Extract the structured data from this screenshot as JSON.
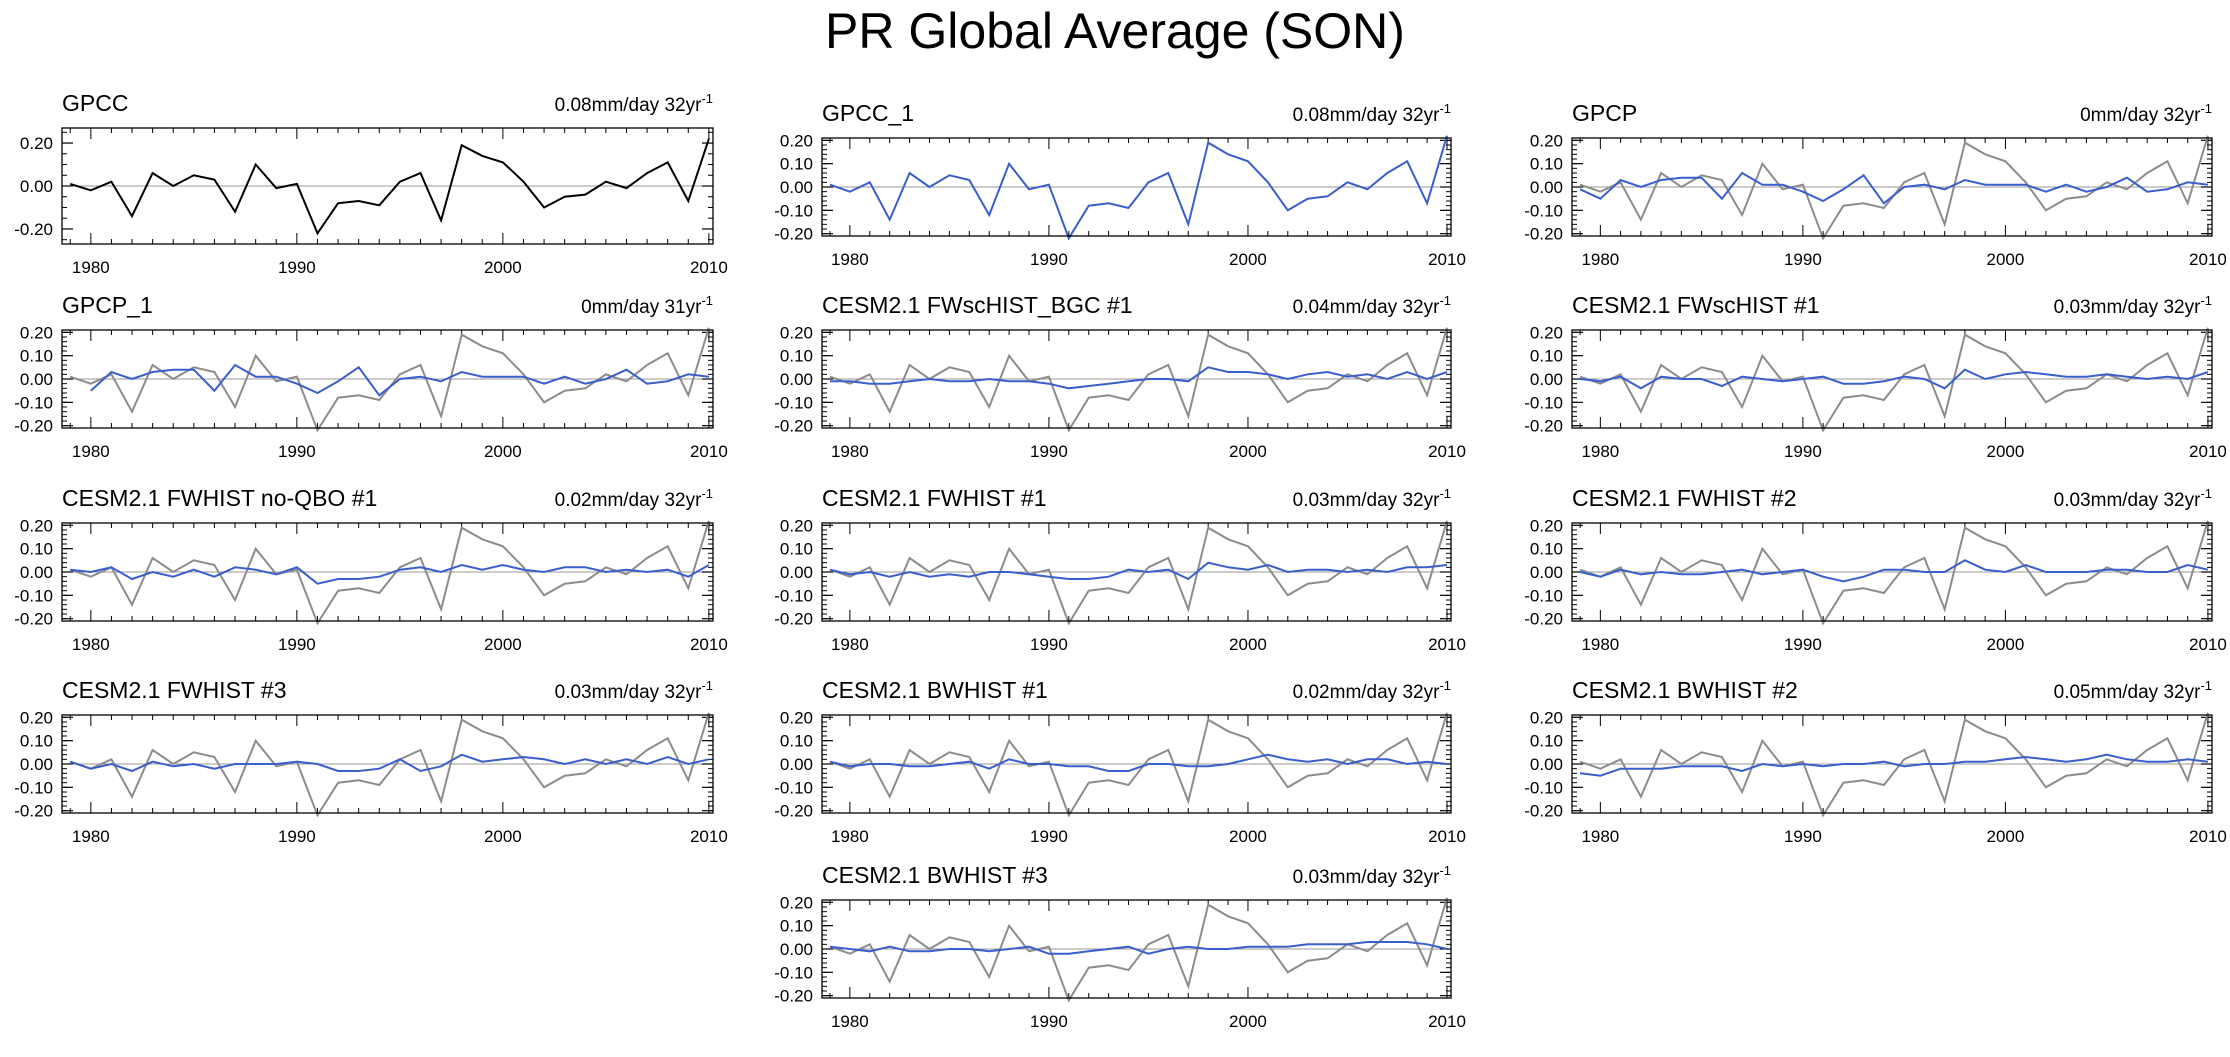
{
  "title": "PR Global Average (SON)",
  "colors": {
    "observed": "#8c8c8c",
    "gpcc": "#000000",
    "model": "#3a5fcd",
    "zero_line": "#999999"
  },
  "chart_data": [
    {
      "type": "line",
      "title": "GPCC",
      "trend": "0.08mm/day 32yr",
      "trend_superscript": "-1",
      "x_start": 1979,
      "x_end": 2010,
      "ylim": [
        -0.27,
        0.27
      ],
      "yticks": [
        -0.2,
        0,
        0.2
      ],
      "ytick_labels": [
        "-0.20",
        "0.00",
        "0.20"
      ],
      "xticks": [
        1980,
        1990,
        2000,
        2010
      ],
      "show_reference": false,
      "series": [
        {
          "color": "#000000",
          "values": [
            0.01,
            -0.02,
            0.02,
            -0.14,
            0.06,
            0.0,
            0.05,
            0.03,
            -0.12,
            0.1,
            -0.01,
            0.01,
            -0.22,
            -0.08,
            -0.07,
            -0.09,
            0.02,
            0.06,
            -0.16,
            0.19,
            0.14,
            0.11,
            0.02,
            -0.1,
            -0.05,
            -0.04,
            0.02,
            -0.01,
            0.06,
            0.11,
            -0.07,
            0.22
          ]
        }
      ]
    },
    {
      "type": "line",
      "title": "GPCC_1",
      "trend": "0.08mm/day 32yr",
      "trend_superscript": "-1",
      "x_start": 1979,
      "x_end": 2010,
      "ylim": [
        -0.21,
        0.21
      ],
      "yticks": [
        -0.2,
        -0.1,
        0,
        0.1,
        0.2
      ],
      "ytick_labels": [
        "-0.20",
        "-0.10",
        "0.00",
        "0.10",
        "0.20"
      ],
      "xticks": [
        1980,
        1990,
        2000,
        2010
      ],
      "show_reference": false,
      "series": [
        {
          "color": "#3a5fcd",
          "values": [
            0.01,
            -0.02,
            0.02,
            -0.14,
            0.06,
            0.0,
            0.05,
            0.03,
            -0.12,
            0.1,
            -0.01,
            0.01,
            -0.22,
            -0.08,
            -0.07,
            -0.09,
            0.02,
            0.06,
            -0.16,
            0.19,
            0.14,
            0.11,
            0.02,
            -0.1,
            -0.05,
            -0.04,
            0.02,
            -0.01,
            0.06,
            0.11,
            -0.07,
            0.22
          ]
        }
      ]
    },
    {
      "type": "line",
      "title": "GPCP",
      "trend": "0mm/day 32yr",
      "trend_superscript": "-1",
      "x_start": 1979,
      "x_end": 2010,
      "ylim": [
        -0.21,
        0.21
      ],
      "yticks": [
        -0.2,
        -0.1,
        0,
        0.1,
        0.2
      ],
      "ytick_labels": [
        "-0.20",
        "-0.10",
        "0.00",
        "0.10",
        "0.20"
      ],
      "xticks": [
        1980,
        1990,
        2000,
        2010
      ],
      "show_reference": true,
      "series": [
        {
          "color": "#3a5fcd",
          "values": [
            -0.01,
            -0.05,
            0.03,
            0.0,
            0.03,
            0.04,
            0.04,
            -0.05,
            0.06,
            0.01,
            0.01,
            -0.02,
            -0.06,
            -0.01,
            0.05,
            -0.07,
            0.0,
            0.01,
            -0.01,
            0.03,
            0.01,
            0.01,
            0.01,
            -0.02,
            0.01,
            -0.02,
            0.0,
            0.04,
            -0.02,
            -0.01,
            0.02,
            0.01
          ]
        }
      ]
    },
    {
      "type": "line",
      "title": "GPCP_1",
      "trend": "0mm/day 31yr",
      "trend_superscript": "-1",
      "x_start": 1980,
      "x_end": 2010,
      "ylim": [
        -0.21,
        0.21
      ],
      "yticks": [
        -0.2,
        -0.1,
        0,
        0.1,
        0.2
      ],
      "ytick_labels": [
        "-0.20",
        "-0.10",
        "0.00",
        "0.10",
        "0.20"
      ],
      "xticks": [
        1980,
        1990,
        2000,
        2010
      ],
      "show_reference": true,
      "series": [
        {
          "color": "#3a5fcd",
          "values": [
            -0.05,
            0.03,
            0.0,
            0.03,
            0.04,
            0.04,
            -0.05,
            0.06,
            0.01,
            0.01,
            -0.02,
            -0.06,
            -0.01,
            0.05,
            -0.07,
            0.0,
            0.01,
            -0.01,
            0.03,
            0.01,
            0.01,
            0.01,
            -0.02,
            0.01,
            -0.02,
            0.0,
            0.04,
            -0.02,
            -0.01,
            0.02,
            0.01
          ]
        }
      ]
    },
    {
      "type": "line",
      "title": "CESM2.1 FWscHIST_BGC #1",
      "trend": "0.04mm/day 32yr",
      "trend_superscript": "-1",
      "x_start": 1979,
      "x_end": 2010,
      "ylim": [
        -0.21,
        0.21
      ],
      "yticks": [
        -0.2,
        -0.1,
        0,
        0.1,
        0.2
      ],
      "ytick_labels": [
        "-0.20",
        "-0.10",
        "0.00",
        "0.10",
        "0.20"
      ],
      "xticks": [
        1980,
        1990,
        2000,
        2010
      ],
      "show_reference": true,
      "series": [
        {
          "color": "#3a5fcd",
          "values": [
            -0.01,
            -0.01,
            -0.02,
            -0.02,
            -0.01,
            0.0,
            -0.01,
            -0.01,
            0.0,
            -0.01,
            -0.01,
            -0.02,
            -0.04,
            -0.03,
            -0.02,
            -0.01,
            0.0,
            0.0,
            -0.01,
            0.05,
            0.03,
            0.03,
            0.02,
            0.0,
            0.02,
            0.03,
            0.01,
            0.02,
            0.0,
            0.03,
            0.0,
            0.03
          ]
        }
      ]
    },
    {
      "type": "line",
      "title": "CESM2.1 FWscHIST #1",
      "trend": "0.03mm/day 32yr",
      "trend_superscript": "-1",
      "x_start": 1979,
      "x_end": 2010,
      "ylim": [
        -0.21,
        0.21
      ],
      "yticks": [
        -0.2,
        -0.1,
        0,
        0.1,
        0.2
      ],
      "ytick_labels": [
        "-0.20",
        "-0.10",
        "0.00",
        "0.10",
        "0.20"
      ],
      "xticks": [
        1980,
        1990,
        2000,
        2010
      ],
      "show_reference": true,
      "series": [
        {
          "color": "#3a5fcd",
          "values": [
            0.0,
            -0.01,
            0.01,
            -0.04,
            0.01,
            0.0,
            0.0,
            -0.03,
            0.01,
            0.0,
            -0.01,
            0.0,
            0.01,
            -0.02,
            -0.02,
            -0.01,
            0.01,
            0.0,
            -0.04,
            0.04,
            0.0,
            0.02,
            0.03,
            0.02,
            0.01,
            0.01,
            0.02,
            0.01,
            0.0,
            0.01,
            0.0,
            0.03
          ]
        }
      ]
    },
    {
      "type": "line",
      "title": "CESM2.1 FWHIST no-QBO #1",
      "trend": "0.02mm/day 32yr",
      "trend_superscript": "-1",
      "x_start": 1979,
      "x_end": 2010,
      "ylim": [
        -0.21,
        0.21
      ],
      "yticks": [
        -0.2,
        -0.1,
        0,
        0.1,
        0.2
      ],
      "ytick_labels": [
        "-0.20",
        "-0.10",
        "0.00",
        "0.10",
        "0.20"
      ],
      "xticks": [
        1980,
        1990,
        2000,
        2010
      ],
      "show_reference": true,
      "series": [
        {
          "color": "#3a5fcd",
          "values": [
            0.01,
            0.0,
            0.02,
            -0.03,
            0.0,
            -0.02,
            0.01,
            -0.02,
            0.02,
            0.01,
            -0.01,
            0.02,
            -0.05,
            -0.03,
            -0.03,
            -0.02,
            0.01,
            0.02,
            0.0,
            0.03,
            0.01,
            0.03,
            0.01,
            0.0,
            0.02,
            0.02,
            0.0,
            0.01,
            0.0,
            0.01,
            -0.02,
            0.03
          ]
        }
      ]
    },
    {
      "type": "line",
      "title": "CESM2.1 FWHIST #1",
      "trend": "0.03mm/day 32yr",
      "trend_superscript": "-1",
      "x_start": 1979,
      "x_end": 2010,
      "ylim": [
        -0.21,
        0.21
      ],
      "yticks": [
        -0.2,
        -0.1,
        0,
        0.1,
        0.2
      ],
      "ytick_labels": [
        "-0.20",
        "-0.10",
        "0.00",
        "0.10",
        "0.20"
      ],
      "xticks": [
        1980,
        1990,
        2000,
        2010
      ],
      "show_reference": true,
      "series": [
        {
          "color": "#3a5fcd",
          "values": [
            0.01,
            -0.01,
            0.0,
            -0.02,
            0.0,
            -0.02,
            -0.01,
            -0.02,
            0.0,
            0.0,
            -0.01,
            -0.02,
            -0.03,
            -0.03,
            -0.02,
            0.01,
            0.0,
            0.01,
            -0.03,
            0.04,
            0.02,
            0.01,
            0.03,
            0.0,
            0.01,
            0.01,
            0.0,
            0.01,
            0.0,
            0.02,
            0.02,
            0.03
          ]
        }
      ]
    },
    {
      "type": "line",
      "title": "CESM2.1 FWHIST #2",
      "trend": "0.03mm/day 32yr",
      "trend_superscript": "-1",
      "x_start": 1979,
      "x_end": 2010,
      "ylim": [
        -0.21,
        0.21
      ],
      "yticks": [
        -0.2,
        -0.1,
        0,
        0.1,
        0.2
      ],
      "ytick_labels": [
        "-0.20",
        "-0.10",
        "0.00",
        "0.10",
        "0.20"
      ],
      "xticks": [
        1980,
        1990,
        2000,
        2010
      ],
      "show_reference": true,
      "series": [
        {
          "color": "#3a5fcd",
          "values": [
            0.0,
            -0.02,
            0.01,
            -0.01,
            0.0,
            -0.01,
            -0.01,
            0.0,
            0.01,
            -0.01,
            0.0,
            0.01,
            -0.02,
            -0.04,
            -0.02,
            0.01,
            0.01,
            0.0,
            0.0,
            0.05,
            0.01,
            0.0,
            0.03,
            0.0,
            0.0,
            0.0,
            0.01,
            0.01,
            0.0,
            0.0,
            0.03,
            0.01
          ]
        }
      ]
    },
    {
      "type": "line",
      "title": "CESM2.1 FWHIST #3",
      "trend": "0.03mm/day 32yr",
      "trend_superscript": "-1",
      "x_start": 1979,
      "x_end": 2010,
      "ylim": [
        -0.21,
        0.21
      ],
      "yticks": [
        -0.2,
        -0.1,
        0,
        0.1,
        0.2
      ],
      "ytick_labels": [
        "-0.20",
        "-0.10",
        "0.00",
        "0.10",
        "0.20"
      ],
      "xticks": [
        1980,
        1990,
        2000,
        2010
      ],
      "show_reference": true,
      "series": [
        {
          "color": "#3a5fcd",
          "values": [
            0.01,
            -0.02,
            0.0,
            -0.03,
            0.01,
            -0.01,
            0.0,
            -0.02,
            0.0,
            0.0,
            0.0,
            0.01,
            0.0,
            -0.03,
            -0.03,
            -0.02,
            0.02,
            -0.03,
            -0.01,
            0.04,
            0.01,
            0.02,
            0.03,
            0.02,
            0.0,
            0.02,
            0.0,
            0.02,
            0.0,
            0.03,
            0.0,
            0.02
          ]
        }
      ]
    },
    {
      "type": "line",
      "title": "CESM2.1 BWHIST #1",
      "trend": "0.02mm/day 32yr",
      "trend_superscript": "-1",
      "x_start": 1979,
      "x_end": 2010,
      "ylim": [
        -0.21,
        0.21
      ],
      "yticks": [
        -0.2,
        -0.1,
        0,
        0.1,
        0.2
      ],
      "ytick_labels": [
        "-0.20",
        "-0.10",
        "0.00",
        "0.10",
        "0.20"
      ],
      "xticks": [
        1980,
        1990,
        2000,
        2010
      ],
      "show_reference": true,
      "series": [
        {
          "color": "#3a5fcd",
          "values": [
            0.01,
            -0.01,
            0.0,
            0.0,
            -0.01,
            -0.01,
            0.0,
            0.01,
            -0.02,
            0.02,
            0.0,
            0.0,
            -0.01,
            -0.01,
            -0.03,
            -0.03,
            0.0,
            0.0,
            -0.01,
            -0.01,
            0.0,
            0.02,
            0.04,
            0.02,
            0.01,
            0.02,
            0.0,
            0.02,
            0.02,
            0.0,
            0.01,
            0.0
          ]
        }
      ]
    },
    {
      "type": "line",
      "title": "CESM2.1 BWHIST #2",
      "trend": "0.05mm/day 32yr",
      "trend_superscript": "-1",
      "x_start": 1979,
      "x_end": 2010,
      "ylim": [
        -0.21,
        0.21
      ],
      "yticks": [
        -0.2,
        -0.1,
        0,
        0.1,
        0.2
      ],
      "ytick_labels": [
        "-0.20",
        "-0.10",
        "0.00",
        "0.10",
        "0.20"
      ],
      "xticks": [
        1980,
        1990,
        2000,
        2010
      ],
      "show_reference": true,
      "series": [
        {
          "color": "#3a5fcd",
          "values": [
            -0.04,
            -0.05,
            -0.02,
            -0.02,
            -0.02,
            -0.01,
            -0.01,
            -0.01,
            -0.03,
            0.0,
            -0.01,
            0.0,
            -0.01,
            0.0,
            0.0,
            0.01,
            -0.01,
            0.0,
            0.0,
            0.01,
            0.01,
            0.02,
            0.03,
            0.02,
            0.01,
            0.02,
            0.04,
            0.02,
            0.01,
            0.01,
            0.02,
            0.01
          ]
        }
      ]
    },
    {
      "type": "line",
      "title": "CESM2.1 BWHIST #3",
      "trend": "0.03mm/day 32yr",
      "trend_superscript": "-1",
      "x_start": 1979,
      "x_end": 2010,
      "ylim": [
        -0.21,
        0.21
      ],
      "yticks": [
        -0.2,
        -0.1,
        0,
        0.1,
        0.2
      ],
      "ytick_labels": [
        "-0.20",
        "-0.10",
        "0.00",
        "0.10",
        "0.20"
      ],
      "xticks": [
        1980,
        1990,
        2000,
        2010
      ],
      "show_reference": true,
      "series": [
        {
          "color": "#3a5fcd",
          "values": [
            0.01,
            0.0,
            -0.01,
            0.01,
            -0.01,
            -0.01,
            0.0,
            0.0,
            -0.01,
            0.0,
            0.01,
            -0.02,
            -0.02,
            -0.01,
            0.0,
            0.01,
            -0.02,
            0.0,
            0.01,
            0.0,
            0.0,
            0.01,
            0.01,
            0.01,
            0.02,
            0.02,
            0.02,
            0.03,
            0.03,
            0.03,
            0.02,
            0.0
          ]
        }
      ]
    }
  ],
  "reference_series": {
    "color": "#8c8c8c",
    "x_start": 1979,
    "values": [
      0.01,
      -0.02,
      0.02,
      -0.14,
      0.06,
      0.0,
      0.05,
      0.03,
      -0.12,
      0.1,
      -0.01,
      0.01,
      -0.22,
      -0.08,
      -0.07,
      -0.09,
      0.02,
      0.06,
      -0.16,
      0.19,
      0.14,
      0.11,
      0.02,
      -0.1,
      -0.05,
      -0.04,
      0.02,
      -0.01,
      0.06,
      0.11,
      -0.07,
      0.22
    ]
  }
}
